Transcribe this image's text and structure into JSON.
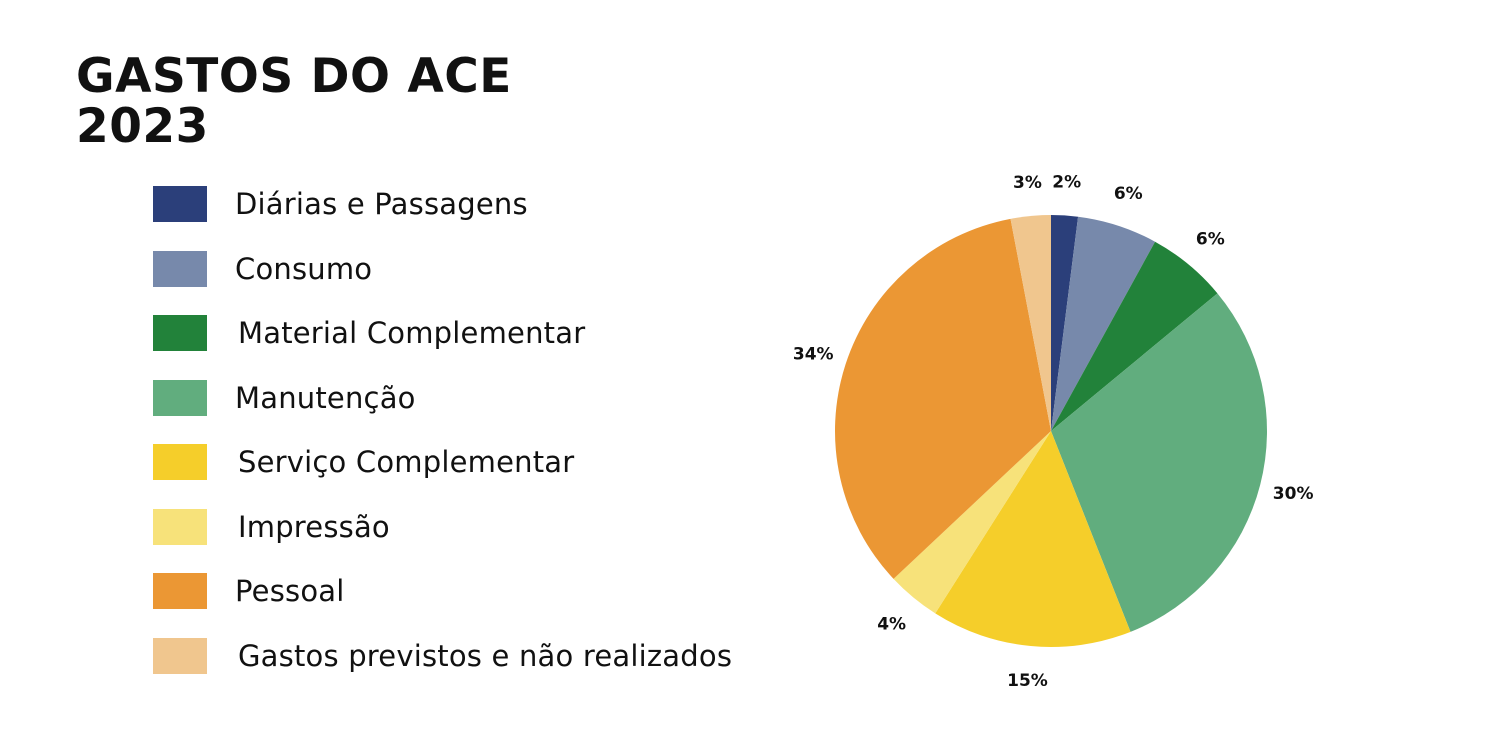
{
  "title": {
    "line1": "GASTOS DO ACE",
    "line2": "2023"
  },
  "chart_data": {
    "type": "pie",
    "title": "GASTOS DO ACE 2023",
    "legend_position": "left",
    "slices": [
      {
        "label": "Diárias e Passagens",
        "value": 2,
        "value_label": "2%",
        "color": "#2b3f7a"
      },
      {
        "label": "Consumo",
        "value": 6,
        "value_label": "6%",
        "color": "#7789ab"
      },
      {
        "label": "Material Complementar",
        "value": 6,
        "value_label": "6%",
        "color": "#22823a"
      },
      {
        "label": "Manutenção",
        "value": 30,
        "value_label": "30%",
        "color": "#61ad7e"
      },
      {
        "label": "Serviço Complementar",
        "value": 15,
        "value_label": "15%",
        "color": "#f5ce2a"
      },
      {
        "label": "Impressão",
        "value": 4,
        "value_label": "4%",
        "color": "#f7e27a"
      },
      {
        "label": "Pessoal",
        "value": 34,
        "value_label": "34%",
        "color": "#eb9734"
      },
      {
        "label": "Gastos previstos e não realizados",
        "value": 3,
        "value_label": "3%",
        "color": "#f0c68e"
      }
    ]
  }
}
